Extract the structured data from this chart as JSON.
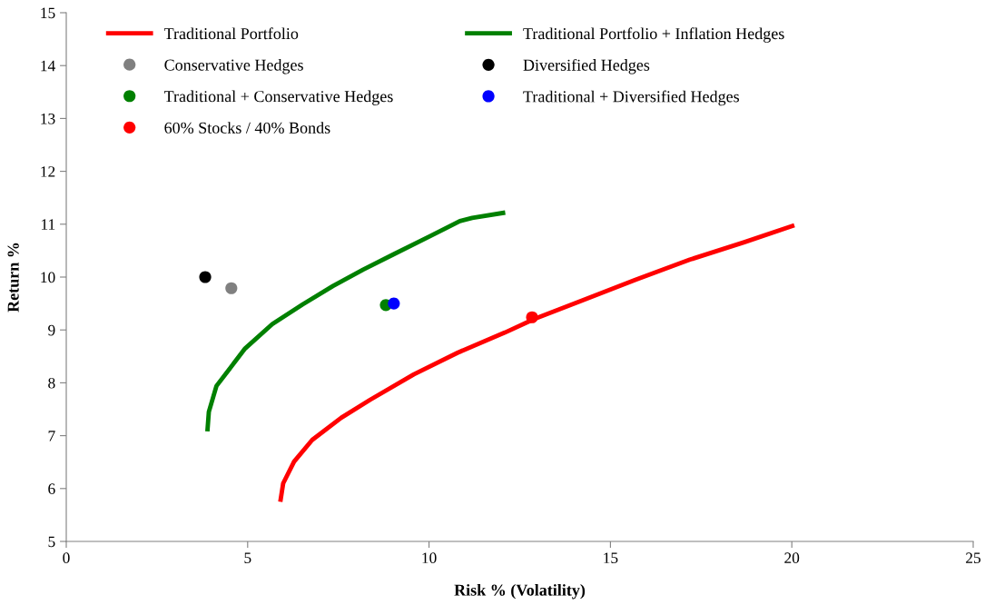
{
  "chart_data": {
    "type": "line",
    "xlabel": "Risk % (Volatility)",
    "ylabel": "Return %",
    "xlim": [
      0,
      25
    ],
    "xticks": [
      0,
      5,
      10,
      15,
      20,
      25
    ],
    "ylim": [
      5,
      15
    ],
    "yticks": [
      5,
      6,
      7,
      8,
      9,
      10,
      11,
      12,
      13,
      14,
      15
    ],
    "grid": false,
    "legend": "top left",
    "line_style": "solid",
    "series": [
      {
        "name": "Traditional Portfolio",
        "color": "#ff0000",
        "marker": "none",
        "x": [
          5.9,
          5.98,
          6.28,
          6.78,
          7.58,
          8.38,
          9.58,
          10.79,
          12.09,
          12.91,
          14.19,
          15.69,
          17.19,
          18.69,
          20.07
        ],
        "values": [
          5.75,
          6.1,
          6.51,
          6.92,
          7.34,
          7.68,
          8.16,
          8.57,
          8.95,
          9.21,
          9.55,
          9.95,
          10.33,
          10.66,
          10.98
        ]
      },
      {
        "name": "Traditional Portfolio + Inflation Hedges",
        "color": "#008000",
        "marker": "none",
        "x": [
          3.89,
          3.93,
          4.14,
          4.93,
          5.68,
          6.51,
          7.35,
          8.18,
          9.02,
          10.02,
          10.85,
          11.19,
          12.1
        ],
        "values": [
          7.08,
          7.45,
          7.94,
          8.65,
          9.11,
          9.48,
          9.83,
          10.14,
          10.43,
          10.77,
          11.06,
          11.12,
          11.22
        ]
      },
      {
        "name": "Conservative Hedges",
        "type": "scatter",
        "color": "#808080",
        "marker": "circle",
        "x": [
          4.55
        ],
        "values": [
          9.79
        ]
      },
      {
        "name": "Diversified Hedges",
        "type": "scatter",
        "color": "#000000",
        "marker": "circle",
        "x": [
          3.83
        ],
        "values": [
          10.0
        ]
      },
      {
        "name": "Traditional + Conservative Hedges",
        "type": "scatter",
        "color": "#008000",
        "marker": "circle",
        "x": [
          8.81
        ],
        "values": [
          9.47
        ]
      },
      {
        "name": "Traditional + Diversified Hedges",
        "type": "scatter",
        "color": "#0000ff",
        "marker": "circle",
        "x": [
          9.03
        ],
        "values": [
          9.5
        ]
      },
      {
        "name": "60% Stocks / 40% Bonds",
        "type": "scatter",
        "color": "#ff0000",
        "marker": "circle",
        "x": [
          12.84
        ],
        "values": [
          9.24
        ]
      }
    ]
  }
}
